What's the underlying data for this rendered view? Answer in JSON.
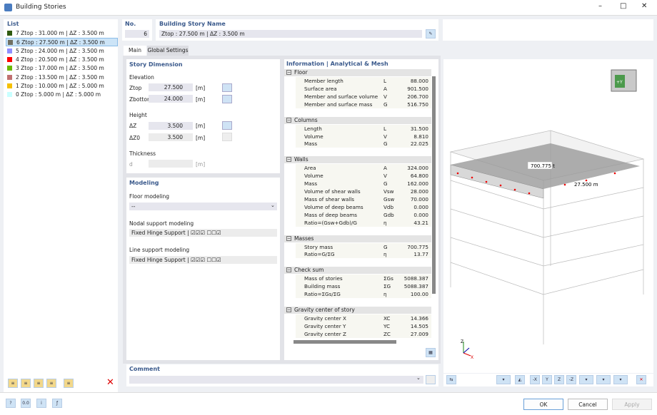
{
  "window": {
    "title": "Building Stories",
    "controls": [
      "minimize",
      "maximize",
      "close"
    ]
  },
  "list": {
    "header": "List",
    "items": [
      {
        "no": "7",
        "label": "Ztop : 31.000 m | ΔZ : 3.500 m",
        "color": "#2f5a10"
      },
      {
        "no": "6",
        "label": "Ztop : 27.500 m | ΔZ : 3.500 m",
        "color": "#6f6f62",
        "selected": true
      },
      {
        "no": "5",
        "label": "Ztop : 24.000 m | ΔZ : 3.500 m",
        "color": "#8f8fff"
      },
      {
        "no": "4",
        "label": "Ztop : 20.500 m | ΔZ : 3.500 m",
        "color": "#ff0000"
      },
      {
        "no": "3",
        "label": "Ztop : 17.000 m | ΔZ : 3.500 m",
        "color": "#6ab800"
      },
      {
        "no": "2",
        "label": "Ztop : 13.500 m | ΔZ : 3.500 m",
        "color": "#c07070"
      },
      {
        "no": "1",
        "label": "Ztop : 10.000 m | ΔZ : 5.000 m",
        "color": "#f5c000"
      },
      {
        "no": "0",
        "label": "Ztop : 5.000 m | ΔZ : 5.000 m",
        "color": "#c8ffff"
      }
    ]
  },
  "no": {
    "header": "No.",
    "value": "6"
  },
  "name": {
    "header": "Building Story Name",
    "value": "Ztop : 27.500 m | ΔZ : 3.500 m"
  },
  "tabs": [
    {
      "label": "Main",
      "active": true
    },
    {
      "label": "Global Settings"
    }
  ],
  "story_dimension": {
    "header": "Story Dimension",
    "elevation": "Elevation",
    "ztop_label": "Ztop",
    "ztop": "27.500",
    "zbottom_label": "Zbottom",
    "zbottom": "24.000",
    "height": "Height",
    "dz_label": "ΔZ",
    "dz": "3.500",
    "dz0_label": "ΔZ0",
    "dz0": "3.500",
    "thickness": "Thickness",
    "d_label": "d",
    "d": "",
    "unit": "[m]"
  },
  "modeling": {
    "header": "Modeling",
    "floor_label": "Floor modeling",
    "floor_value": "--",
    "nodal_label": "Nodal support modeling",
    "nodal_value": "Fixed Hinge Support | ☑☑☑ ☐☐☑",
    "line_label": "Line support modeling",
    "line_value": "Fixed Hinge Support | ☑☑☑ ☐☐☑"
  },
  "info": {
    "header": "Information | Analytical & Mesh",
    "sections": [
      {
        "title": "Floor",
        "rows": [
          [
            "Member length",
            "L",
            "88.000"
          ],
          [
            "Surface area",
            "A",
            "901.500"
          ],
          [
            "Member and surface volume",
            "V",
            "206.700"
          ],
          [
            "Member and surface mass",
            "G",
            "516.750"
          ]
        ]
      },
      {
        "title": "Columns",
        "rows": [
          [
            "Length",
            "L",
            "31.500"
          ],
          [
            "Volume",
            "V",
            "8.810"
          ],
          [
            "Mass",
            "G",
            "22.025"
          ]
        ]
      },
      {
        "title": "Walls",
        "rows": [
          [
            "Area",
            "A",
            "324.000"
          ],
          [
            "Volume",
            "V",
            "64.800"
          ],
          [
            "Mass",
            "G",
            "162.000"
          ],
          [
            "Volume of shear walls",
            "Vsw",
            "28.000"
          ],
          [
            "Mass of shear walls",
            "Gsw",
            "70.000"
          ],
          [
            "Volume of deep beams",
            "Vdb",
            "0.000"
          ],
          [
            "Mass of deep beams",
            "Gdb",
            "0.000"
          ],
          [
            "Ratio=(Gsw+Gdb)/G",
            "η",
            "43.21"
          ]
        ]
      },
      {
        "title": "Masses",
        "rows": [
          [
            "Story mass",
            "G",
            "700.775"
          ],
          [
            "Ratio=G/ΣG",
            "η",
            "13.77"
          ]
        ]
      },
      {
        "title": "Check sum",
        "rows": [
          [
            "Mass of stories",
            "ΣGs",
            "5088.387"
          ],
          [
            "Building mass",
            "ΣG",
            "5088.387"
          ],
          [
            "Ratio=ΣGs/ΣG",
            "η",
            "100.00"
          ]
        ]
      },
      {
        "title": "Gravity center of story",
        "rows": [
          [
            "Gravity center X",
            "XC",
            "14.366"
          ],
          [
            "Gravity center Y",
            "YC",
            "14.505"
          ],
          [
            "Gravity center Z",
            "ZC",
            "27.009"
          ]
        ]
      }
    ]
  },
  "view": {
    "label_mass": "700.775 t",
    "label_elev": "27.500 m",
    "axes": {
      "x": "X",
      "y": "Y",
      "z": "Z"
    },
    "cube_label": "+Y"
  },
  "comment": {
    "header": "Comment",
    "value": ""
  },
  "buttons": {
    "ok": "OK",
    "cancel": "Cancel",
    "apply": "Apply"
  }
}
